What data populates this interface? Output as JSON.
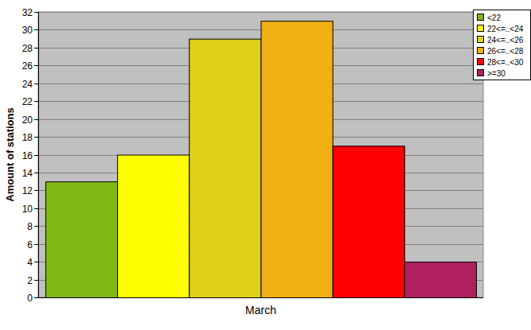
{
  "chart_data": {
    "type": "bar",
    "y_label": "Amount of stations",
    "categories": [
      "March"
    ],
    "series": [
      {
        "name": "<22",
        "color": "#80b814",
        "values": [
          13
        ]
      },
      {
        "name": "22<=..<24",
        "color": "#ffff00",
        "values": [
          16
        ]
      },
      {
        "name": "24<=..<26",
        "color": "#e0d018",
        "values": [
          29
        ]
      },
      {
        "name": "26<=..<28",
        "color": "#f0b014",
        "values": [
          31
        ]
      },
      {
        "name": "28<=..<30",
        "color": "#ff0000",
        "values": [
          17
        ]
      },
      {
        "name": ">=30",
        "color": "#b02060",
        "values": [
          4
        ]
      }
    ],
    "ylim": [
      0,
      32
    ],
    "yticks": [
      0,
      2,
      4,
      6,
      8,
      10,
      12,
      14,
      16,
      18,
      20,
      22,
      24,
      26,
      28,
      30,
      32
    ],
    "grid": true,
    "legend": "top-right"
  }
}
